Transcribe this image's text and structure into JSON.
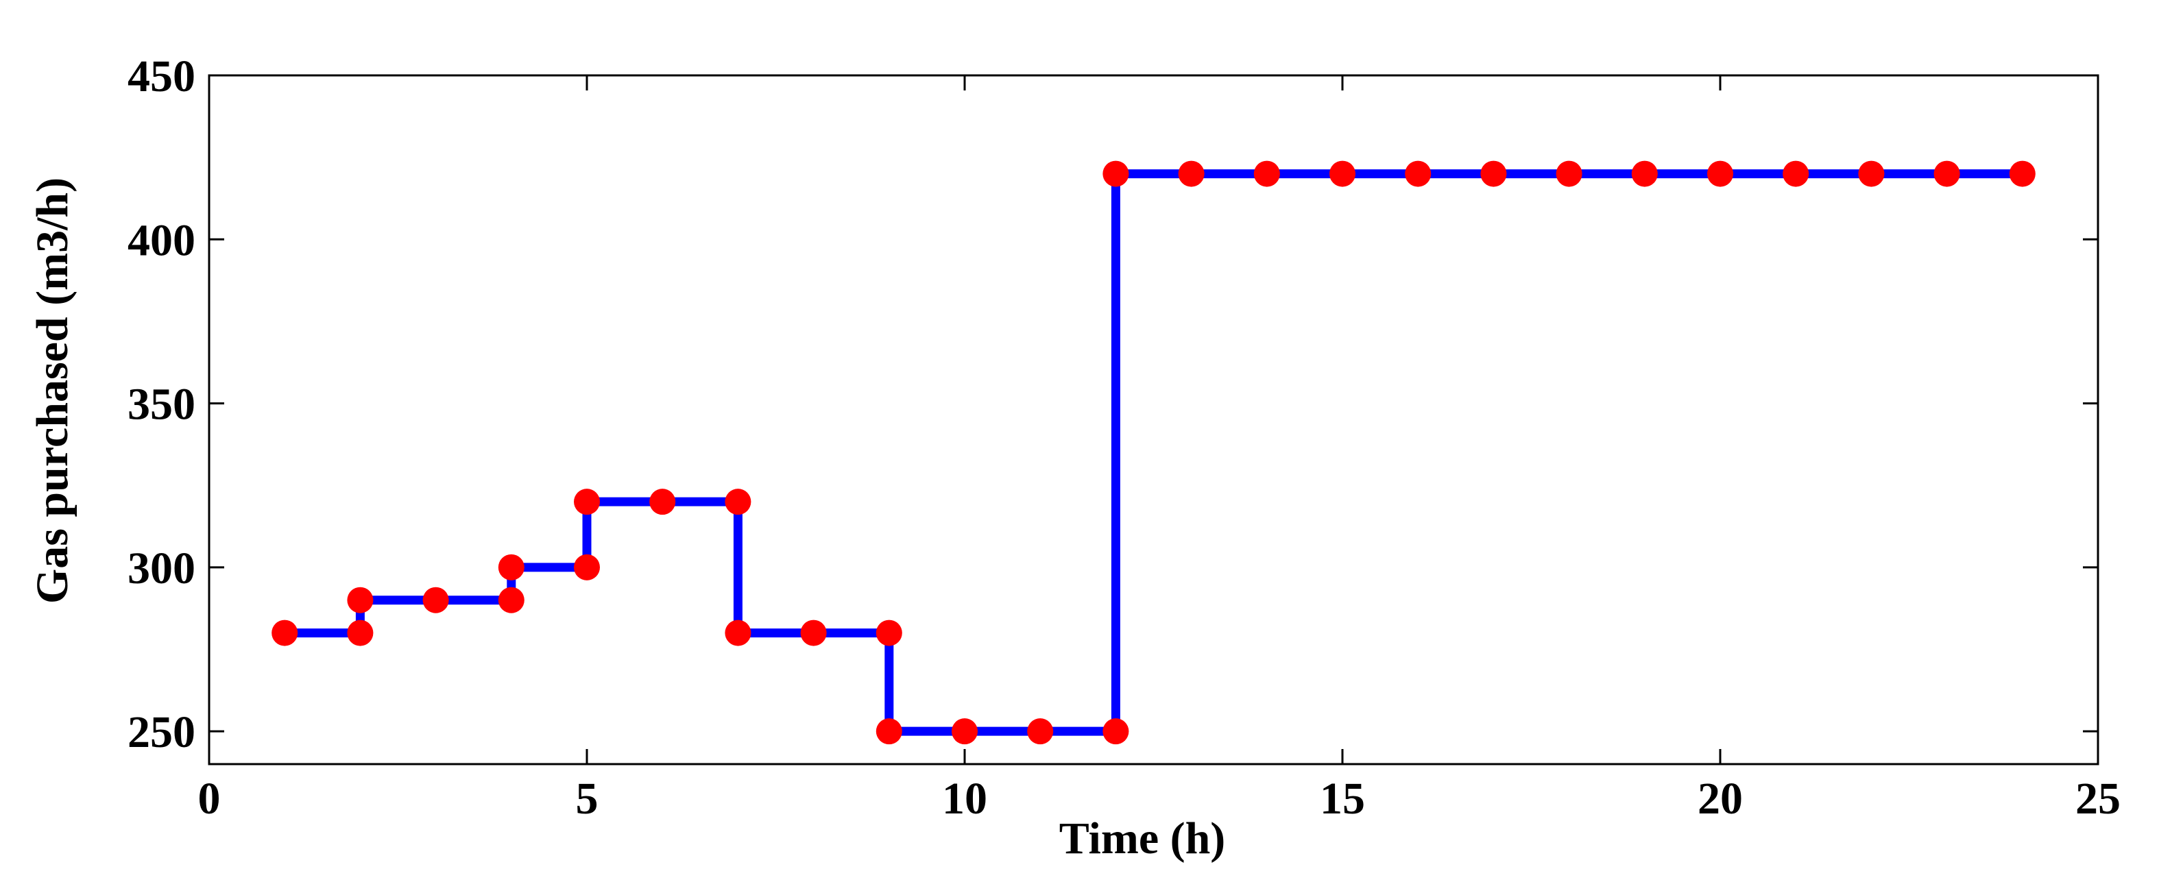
{
  "chart_data": {
    "type": "line",
    "xlabel": "Time (h)",
    "ylabel": "Gas purchased (m3/h)",
    "xlim": [
      0,
      25
    ],
    "ylim": [
      240,
      450
    ],
    "xticks": [
      0,
      5,
      10,
      15,
      20,
      25
    ],
    "yticks": [
      250,
      300,
      350,
      400,
      450
    ],
    "step": true,
    "grid": false,
    "colors": {
      "line": "#0000ff",
      "marker": "#ff0000"
    },
    "series": [
      {
        "x": [
          1,
          2,
          3,
          4,
          5,
          6,
          7,
          8,
          9,
          10,
          11,
          12,
          13,
          14,
          15,
          16,
          17,
          18,
          19,
          20,
          21,
          22,
          23,
          24
        ],
        "values": [
          280,
          290,
          290,
          300,
          320,
          320,
          280,
          280,
          250,
          250,
          250,
          420,
          420,
          420,
          420,
          420,
          420,
          420,
          420,
          420,
          420,
          420,
          420,
          420
        ]
      }
    ]
  }
}
